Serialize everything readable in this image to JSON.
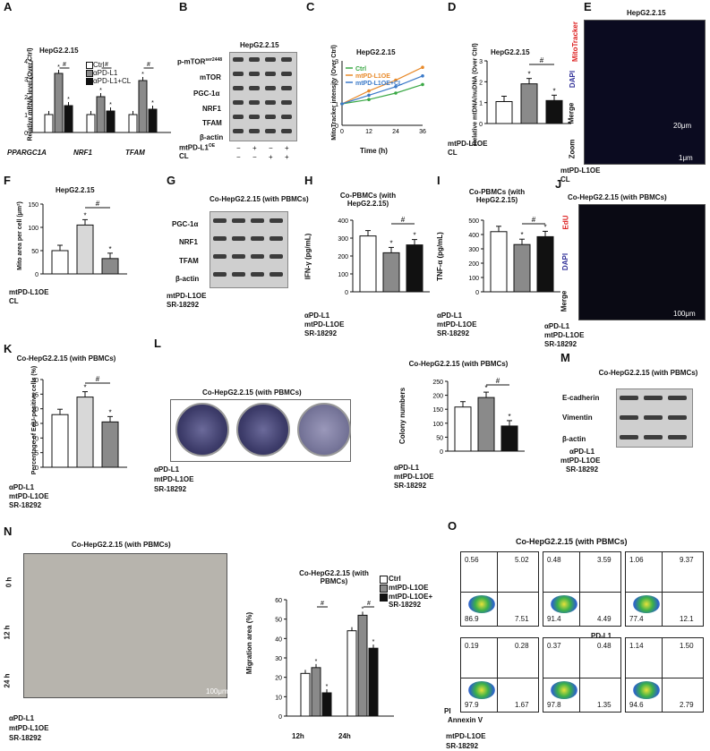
{
  "panels": {
    "A": {
      "label": "A",
      "title": "HepG2.2.15",
      "ylabel": "Relative mRNA level (Over Ctrl)",
      "legend": [
        "Ctrl",
        "αPD-L1",
        "αPD-L1+CL"
      ],
      "groups": [
        "PPARGC1A",
        "NRF1",
        "TFAM"
      ],
      "yticks": [
        "0",
        "1",
        "2",
        "3",
        "4"
      ]
    },
    "B": {
      "label": "B",
      "title": "HepG2.2.15",
      "rows": [
        "p-mTOR",
        "mTOR",
        "PGC-1α",
        "NRF1",
        "TFAM",
        "β-actin"
      ],
      "rowsup": "ser2448",
      "cond1": "mtPD-L1",
      "cond1sup": "OE",
      "cond2": "CL"
    },
    "C": {
      "label": "C",
      "title": "HepG2.2.15",
      "ylabel": "MitoTracker intensity (Over Ctrl)",
      "xlabel": "Time (h)",
      "legend": [
        "Ctrl",
        "mtPD-L1OE",
        "mtPD-L1OE+CL"
      ],
      "xticks": [
        "0",
        "12",
        "24",
        "36"
      ],
      "yticks": [
        "0",
        "1",
        "2",
        "3"
      ]
    },
    "D": {
      "label": "D",
      "title": "HepG2.2.15",
      "ylabel": "Relative mtDNA/nuDNA (Over Ctrl)",
      "yticks": [
        "0",
        "1",
        "2",
        "3"
      ],
      "cond1": "mtPD-L1OE",
      "cond2": "CL"
    },
    "E": {
      "label": "E",
      "title": "HepG2.2.15",
      "rows": [
        "MitoTracker",
        "DAPI",
        "Merge",
        "Zoom"
      ],
      "scale1": "20μm",
      "scale2": "1μm",
      "cond1": "mtPD-L1OE",
      "cond2": "CL"
    },
    "F": {
      "label": "F",
      "title": "HepG2.2.15",
      "ylabel": "Mito area per cell (μm²)",
      "yticks": [
        "0",
        "50",
        "100",
        "150"
      ],
      "cond1": "mtPD-L1OE",
      "cond2": "CL"
    },
    "G": {
      "label": "G",
      "title": "Co-HepG2.2.15 (with PBMCs)",
      "rows": [
        "PGC-1α",
        "NRF1",
        "TFAM",
        "β-actin"
      ],
      "cond1": "mtPD-L1OE",
      "cond2": "SR-18292"
    },
    "H": {
      "label": "H",
      "title": "Co-PBMCs (with HepG2.2.15)",
      "ylabel": "IFN-γ (pg/mL)",
      "yticks": [
        "0",
        "100",
        "200",
        "300",
        "400"
      ],
      "cond0": "αPD-L1",
      "cond1": "mtPD-L1OE",
      "cond2": "SR-18292"
    },
    "I": {
      "label": "I",
      "title": "Co-PBMCs (with HepG2.2.15)",
      "ylabel": "TNF-α (pg/mL)",
      "yticks": [
        "0",
        "100",
        "200",
        "300",
        "400",
        "500"
      ],
      "cond0": "αPD-L1",
      "cond1": "mtPD-L1OE",
      "cond2": "SR-18292"
    },
    "J": {
      "label": "J",
      "title": "Co-HepG2.2.15 (with PBMCs)",
      "rows": [
        "EdU",
        "DAPI",
        "Merge"
      ],
      "scale": "100μm",
      "cond0": "αPD-L1",
      "cond1": "mtPD-L1OE",
      "cond2": "SR-18292"
    },
    "K": {
      "label": "K",
      "title": "Co-HepG2.2.15 (with PBMCs)",
      "ylabel": "Percentage of EdU-positive cells (%)",
      "yticks": [
        "0",
        "5",
        "10",
        "15",
        "20",
        "25",
        "30"
      ],
      "cond0": "αPD-L1",
      "cond1": "mtPD-L1OE",
      "cond2": "SR-18292"
    },
    "L": {
      "label": "L",
      "title": "Co-HepG2.2.15 (with PBMCs)",
      "chart_title": "Co-HepG2.2.15 (with PBMCs)",
      "ylabel": "Colony numbers",
      "yticks": [
        "0",
        "50",
        "100",
        "150",
        "200",
        "250"
      ],
      "cond0": "αPD-L1",
      "cond1": "mtPD-L1OE",
      "cond2": "SR-18292"
    },
    "M": {
      "label": "M",
      "title": "Co-HepG2.2.15 (with PBMCs)",
      "rows": [
        "E-cadherin",
        "Vimentin",
        "β-actin"
      ],
      "cond0": "αPD-L1",
      "cond1": "mtPD-L1OE",
      "cond2": "SR-18292"
    },
    "N": {
      "label": "N",
      "title": "Co-HepG2.2.15 (with PBMCs)",
      "chart_title": "Co-HepG2.2.15 (with PBMCs)",
      "rows": [
        "0 h",
        "12 h",
        "24 h"
      ],
      "scale": "100μm",
      "ylabel": "Migration area (%)",
      "legend": [
        "Ctrl",
        "mtPD-L1OE",
        "mtPD-L1OE+ SR-18292"
      ],
      "groups": [
        "12h",
        "24h"
      ],
      "yticks": [
        "0",
        "10",
        "20",
        "30",
        "40",
        "50",
        "60"
      ],
      "cond0": "αPD-L1",
      "cond1": "mtPD-L1OE",
      "cond2": "SR-18292"
    },
    "O": {
      "label": "O",
      "title": "Co-HepG2.2.15 (with PBMCs)",
      "xlabel": "Annexin V",
      "ylabel": "PI",
      "midlabel": "PD-L1",
      "cond1": "mtPD-L1OE",
      "cond2": "SR-18292",
      "quads": [
        [
          "0.56",
          "5.02",
          "86.9",
          "7.51"
        ],
        [
          "0.48",
          "3.59",
          "91.4",
          "4.49"
        ],
        [
          "1.06",
          "9.37",
          "77.4",
          "12.1"
        ],
        [
          "0.19",
          "0.28",
          "97.9",
          "1.67"
        ],
        [
          "0.37",
          "0.48",
          "97.8",
          "1.35"
        ],
        [
          "1.14",
          "1.50",
          "94.6",
          "2.79"
        ]
      ]
    }
  },
  "signs": {
    "plus": "+",
    "minus": "−",
    "hash": "#",
    "star": "*"
  },
  "chart_data": [
    {
      "type": "bar",
      "panel": "A",
      "categories": [
        "PPARGC1A",
        "NRF1",
        "TFAM"
      ],
      "series": [
        {
          "name": "Ctrl",
          "values": [
            1,
            1,
            1
          ]
        },
        {
          "name": "αPD-L1",
          "values": [
            3.3,
            2.0,
            2.9
          ]
        },
        {
          "name": "αPD-L1+CL",
          "values": [
            1.5,
            1.2,
            1.3
          ]
        }
      ],
      "ylim": [
        0,
        4
      ]
    },
    {
      "type": "line",
      "panel": "C",
      "x": [
        0,
        12,
        24,
        36
      ],
      "series": [
        {
          "name": "Ctrl",
          "values": [
            1,
            1.2,
            1.5,
            1.9
          ]
        },
        {
          "name": "mtPD-L1OE",
          "values": [
            1,
            1.6,
            2.1,
            2.7
          ]
        },
        {
          "name": "mtPD-L1OE+CL",
          "values": [
            1,
            1.4,
            1.8,
            2.3
          ]
        }
      ],
      "ylim": [
        0,
        3
      ]
    },
    {
      "type": "bar",
      "panel": "D",
      "categories": [
        "1",
        "2",
        "3"
      ],
      "values": [
        1.05,
        1.9,
        1.1
      ],
      "ylim": [
        0,
        3
      ]
    },
    {
      "type": "bar",
      "panel": "F",
      "categories": [
        "1",
        "2",
        "3"
      ],
      "values": [
        50,
        105,
        33
      ],
      "ylim": [
        0,
        150
      ]
    },
    {
      "type": "bar",
      "panel": "H",
      "categories": [
        "1",
        "2",
        "3"
      ],
      "values": [
        312,
        218,
        262
      ],
      "ylim": [
        0,
        400
      ]
    },
    {
      "type": "bar",
      "panel": "I",
      "categories": [
        "1",
        "2",
        "3"
      ],
      "values": [
        420,
        330,
        385
      ],
      "ylim": [
        0,
        500
      ]
    },
    {
      "type": "bar",
      "panel": "K",
      "categories": [
        "1",
        "2",
        "3"
      ],
      "values": [
        18,
        24,
        15.5
      ],
      "ylim": [
        0,
        30
      ]
    },
    {
      "type": "bar",
      "panel": "L",
      "categories": [
        "1",
        "2",
        "3"
      ],
      "values": [
        158,
        192,
        90
      ],
      "ylim": [
        0,
        250
      ]
    },
    {
      "type": "bar",
      "panel": "N",
      "categories": [
        "12h",
        "24h"
      ],
      "series": [
        {
          "name": "Ctrl",
          "values": [
            22,
            44
          ]
        },
        {
          "name": "mtPD-L1OE",
          "values": [
            25,
            52
          ]
        },
        {
          "name": "mtPD-L1OE+ SR-18292",
          "values": [
            12,
            35
          ]
        }
      ],
      "ylim": [
        0,
        60
      ]
    }
  ],
  "colors": {
    "white": "#ffffff",
    "grey": "#8a8a8a",
    "light": "#d8d8d8",
    "black": "#111111",
    "green": "#3aa845",
    "orange": "#e88a2a",
    "blue": "#3a79c8"
  }
}
